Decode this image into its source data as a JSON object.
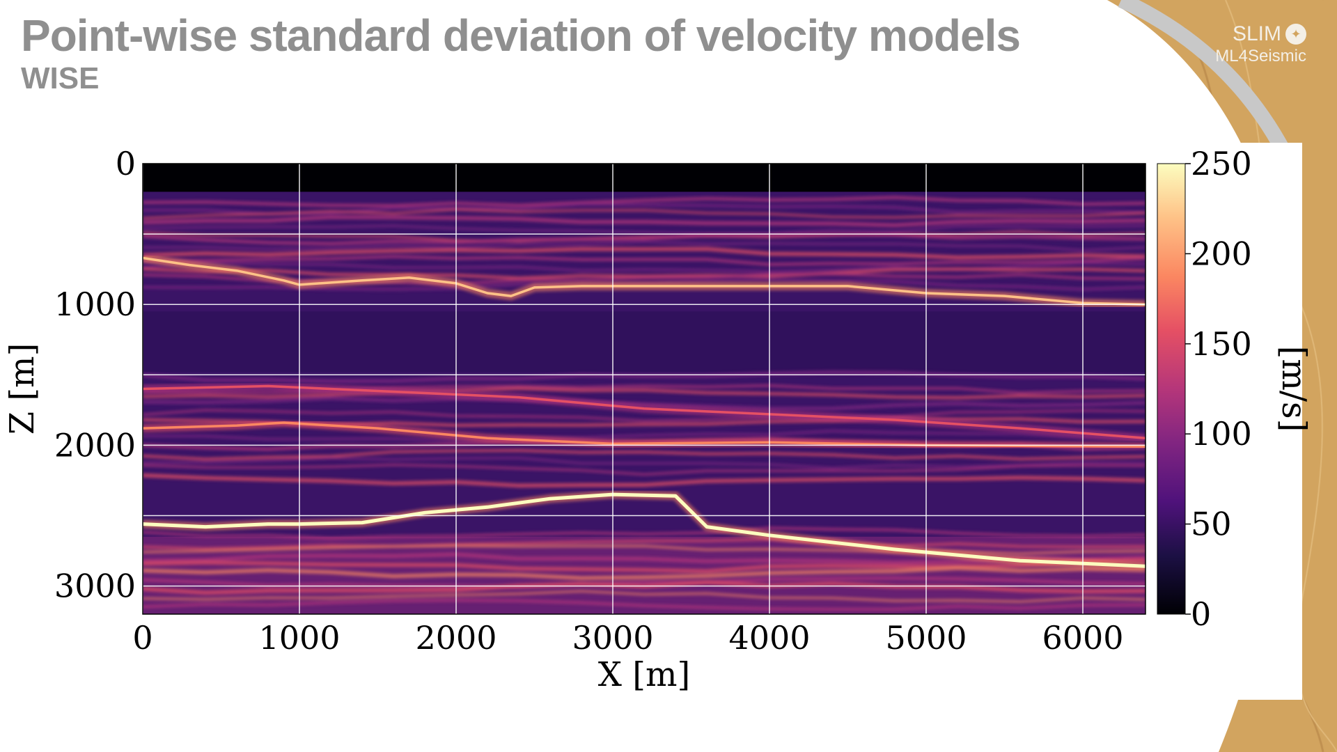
{
  "slide": {
    "title": "Point-wise standard deviation of velocity models",
    "subtitle": "WISE"
  },
  "logo": {
    "line1": "SLIM",
    "line2": "ML4Seismic",
    "icon": "slim-compass-icon"
  },
  "theme": {
    "title_color": "#8f8f8f",
    "wood_color": "#d2a45f",
    "arc_gray": "#c8c8c8"
  },
  "chart_data": {
    "type": "heatmap",
    "colormap": "magma",
    "title": "",
    "xlabel": "X [m]",
    "ylabel": "Z [m]",
    "colorbar_label": "[m/s]",
    "xlim": [
      0,
      6400
    ],
    "ylim": [
      3200,
      0
    ],
    "zlim": [
      0,
      250
    ],
    "x_ticks": [
      0,
      1000,
      2000,
      3000,
      4000,
      5000,
      6000
    ],
    "y_ticks": [
      0,
      1000,
      2000,
      3000
    ],
    "colorbar_ticks": [
      0,
      50,
      100,
      150,
      200,
      250
    ],
    "grid": true,
    "water_layer_depth": 200,
    "horizons": [
      {
        "x": [
          0,
          300,
          600,
          900,
          1000,
          1400,
          1700,
          2000,
          2200,
          2350,
          2500,
          2800,
          3500,
          4500,
          5000,
          5500,
          6000,
          6400
        ],
        "z": [
          670,
          720,
          760,
          830,
          860,
          830,
          810,
          850,
          920,
          940,
          880,
          870,
          870,
          870,
          920,
          940,
          990,
          1000
        ],
        "value": 220
      },
      {
        "x": [
          0,
          400,
          800,
          1000,
          1400,
          1800,
          2200,
          2600,
          3000,
          3400,
          3600,
          4000,
          4800,
          5600,
          6400
        ],
        "z": [
          2560,
          2580,
          2560,
          2560,
          2550,
          2480,
          2440,
          2380,
          2350,
          2360,
          2580,
          2640,
          2740,
          2820,
          2860
        ],
        "value": 250
      },
      {
        "x": [
          0,
          800,
          1600,
          2400,
          3200,
          4000,
          4800,
          5600,
          6400
        ],
        "z": [
          1600,
          1580,
          1620,
          1660,
          1740,
          1780,
          1820,
          1880,
          1950
        ],
        "value": 170
      },
      {
        "x": [
          0,
          600,
          900,
          1500,
          2200,
          3000,
          4000,
          5000,
          6400
        ],
        "z": [
          1880,
          1860,
          1840,
          1880,
          1950,
          1990,
          1980,
          2000,
          2010
        ],
        "value": 180
      }
    ]
  }
}
